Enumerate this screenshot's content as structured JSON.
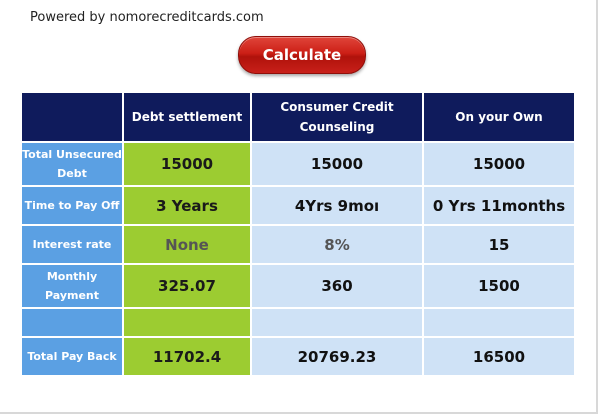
{
  "header": {
    "powered_by": "Powered by nomorecreditcards.com",
    "calculate_label": "Calculate"
  },
  "table": {
    "columns": [
      "",
      "Debt settlement",
      "Consumer Credit Counseling",
      "On your Own"
    ],
    "rows": [
      {
        "label": "Total Unsecured Debt",
        "values": [
          "15000",
          "15000",
          "15000"
        ]
      },
      {
        "label": "Time to Pay Off",
        "values": [
          "3 Years",
          "4Yrs 9moı",
          "0 Yrs 11months"
        ]
      },
      {
        "label": "Interest rate",
        "values": [
          "None",
          "8%",
          "15"
        ]
      },
      {
        "label": "Monthly Payment",
        "values": [
          "325.07",
          "360",
          "1500"
        ]
      },
      {
        "label": "",
        "values": [
          "",
          "",
          ""
        ]
      },
      {
        "label": "Total Pay Back",
        "values": [
          "11702.4",
          "20769.23",
          "16500"
        ]
      }
    ]
  },
  "colors": {
    "header_bg": "#0f1b5c",
    "label_bg": "#5ba0e3",
    "debt_settlement_bg": "#9ccc31",
    "other_bg": "#cfe2f6",
    "button_red": "#cc1f16"
  }
}
